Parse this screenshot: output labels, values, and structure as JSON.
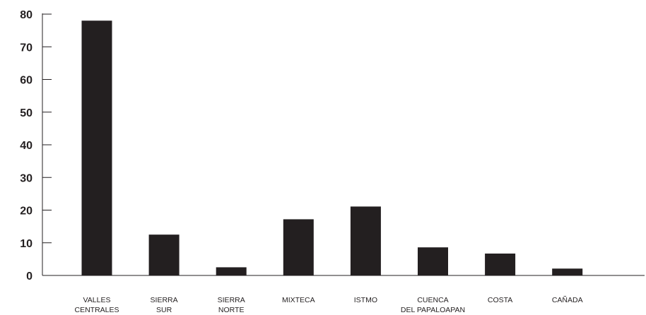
{
  "chart_data": {
    "type": "bar",
    "categories": [
      [
        "VALLES",
        "CENTRALES"
      ],
      [
        "SIERRA",
        "SUR"
      ],
      [
        "SIERRA",
        "NORTE"
      ],
      [
        "MIXTECA"
      ],
      [
        "ISTMO"
      ],
      [
        "CUENCA",
        "DEL PAPALOAPAN"
      ],
      [
        "COSTA"
      ],
      [
        "CAÑADA"
      ]
    ],
    "values": [
      78,
      12.5,
      2.5,
      17.2,
      21.1,
      8.6,
      6.7,
      2.1
    ],
    "yticks": [
      "0",
      "10",
      "20",
      "30",
      "40",
      "50",
      "60",
      "70",
      "80"
    ],
    "ylim": [
      0,
      80
    ],
    "grid": false,
    "colors": {
      "bar": "#231f20",
      "axis": "#231f20",
      "text": "#231f20"
    }
  }
}
